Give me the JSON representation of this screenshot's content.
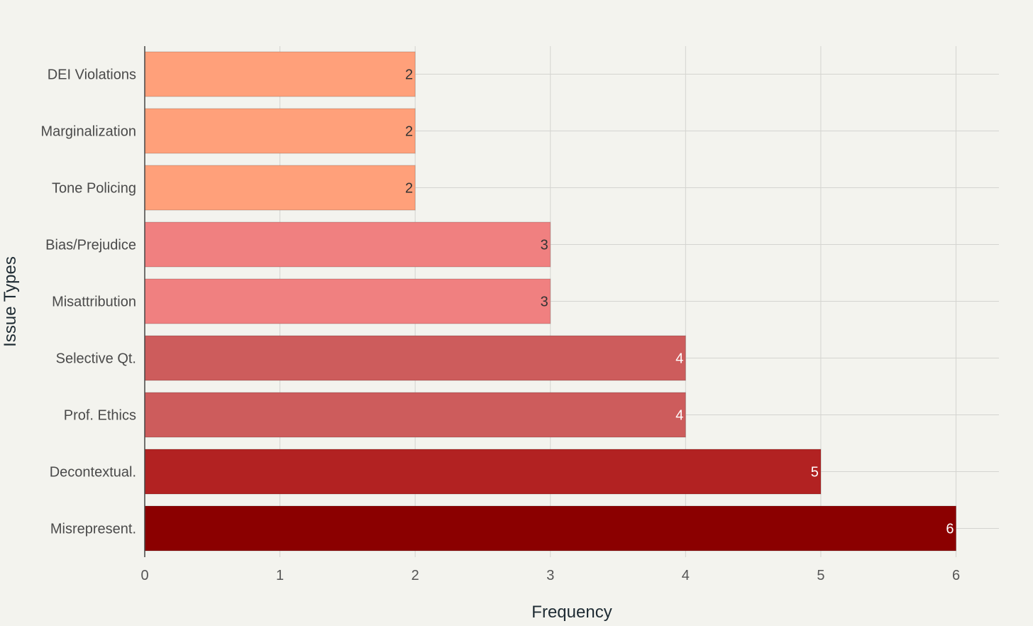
{
  "chart_data": {
    "type": "bar",
    "orientation": "horizontal",
    "title": "",
    "xlabel": "Frequency",
    "ylabel": "Issue Types",
    "categories": [
      "Misrepresent.",
      "Decontextual.",
      "Prof. Ethics",
      "Selective Qt.",
      "Misattribution",
      "Bias/Prejudice",
      "Tone Policing",
      "Marginalization",
      "DEI Violations"
    ],
    "values": [
      6,
      5,
      4,
      4,
      3,
      3,
      2,
      2,
      2
    ],
    "bar_colors": [
      "#8b0000",
      "#b22222",
      "#cd5c5c",
      "#cd5c5c",
      "#f08080",
      "#f08080",
      "#ffa07a",
      "#ffa07a",
      "#ffa07a"
    ],
    "value_label_colors": [
      "#ffffff",
      "#ffffff",
      "#ffffff",
      "#ffffff",
      "#333333",
      "#333333",
      "#333333",
      "#333333",
      "#333333"
    ],
    "xlim": [
      0,
      6.3
    ],
    "xticks": [
      0,
      1,
      2,
      3,
      4,
      5,
      6
    ],
    "grid": true,
    "legend": "none",
    "background_color": "#f3f3ee",
    "grid_color": "#d4d4d0"
  }
}
